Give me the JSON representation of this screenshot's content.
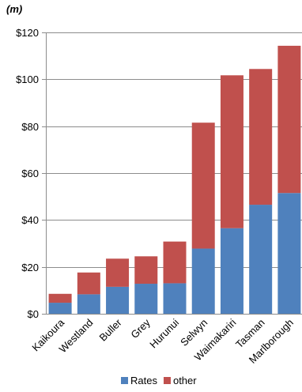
{
  "chart_data": {
    "type": "bar",
    "stacked": true,
    "unit_label": "(m)",
    "categories": [
      "Kaikoura",
      "Westland",
      "Buller",
      "Grey",
      "Hurunui",
      "Selwyn",
      "Waimakariri",
      "Tasman",
      "Marlborough"
    ],
    "series": [
      {
        "name": "Rates",
        "color": "#4f81bd",
        "values": [
          4.7,
          8.3,
          11.5,
          12.8,
          13.0,
          27.8,
          36.5,
          46.5,
          51.5
        ]
      },
      {
        "name": "other",
        "color": "#c0504d",
        "values": [
          3.8,
          9.3,
          12.0,
          11.7,
          17.8,
          53.7,
          65.2,
          57.9,
          62.8
        ]
      }
    ],
    "ylim": [
      0,
      120
    ],
    "yticks": [
      0,
      20,
      40,
      60,
      80,
      100,
      120
    ],
    "ytick_labels": [
      "$0",
      "$20",
      "$40",
      "$60",
      "$80",
      "$100",
      "$120"
    ],
    "grid": true,
    "legend": "bottom"
  }
}
